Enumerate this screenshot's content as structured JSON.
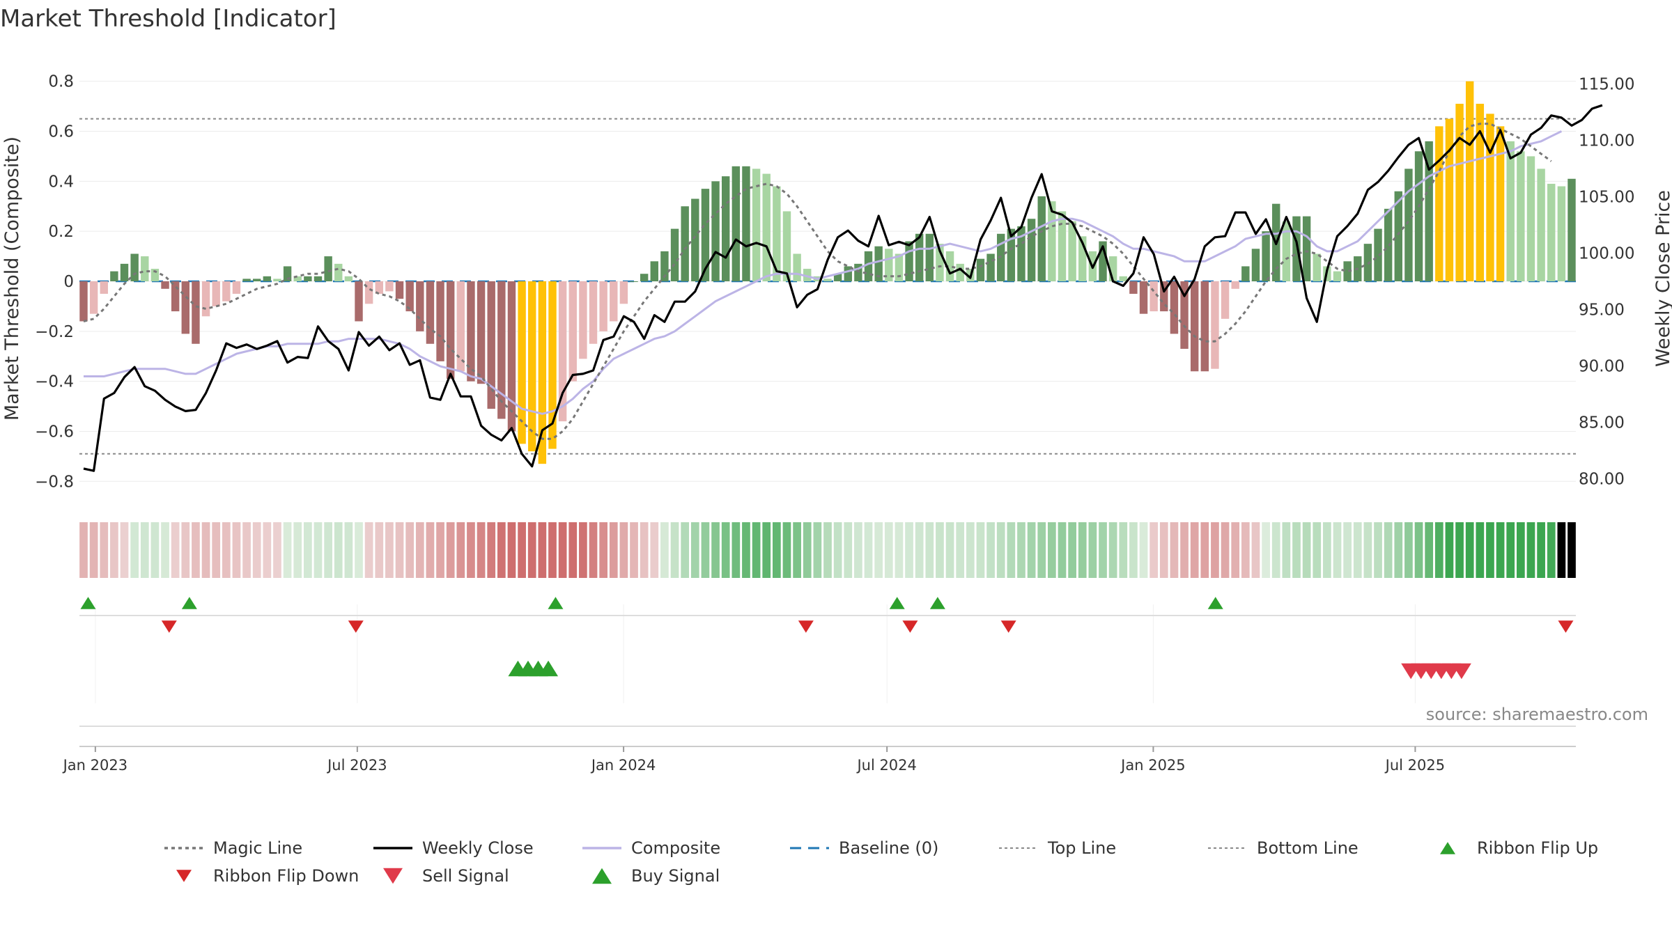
{
  "chart_data": {
    "type": "bar",
    "title": "Market Threshold [Indicator]",
    "ylabel": "Market Threshold (Composite)",
    "y2label": "Weekly Close Price",
    "source": "source: sharemaestro.com",
    "ylim": [
      -0.88,
      0.88
    ],
    "y2lim": [
      78.0,
      117.0
    ],
    "yticks": [
      {
        "v": 0.8,
        "label": "0.8"
      },
      {
        "v": 0.6,
        "label": "0.6"
      },
      {
        "v": 0.4,
        "label": "0.4"
      },
      {
        "v": 0.2,
        "label": "0.2"
      },
      {
        "v": 0,
        "label": "0"
      },
      {
        "v": -0.2,
        "label": "−0.2"
      },
      {
        "v": -0.4,
        "label": "−0.4"
      },
      {
        "v": -0.6,
        "label": "−0.6"
      },
      {
        "v": -0.8,
        "label": "−0.8"
      }
    ],
    "y2ticks": [
      {
        "v": 115,
        "label": "115.00"
      },
      {
        "v": 110,
        "label": "110.00"
      },
      {
        "v": 105,
        "label": "105.00"
      },
      {
        "v": 100,
        "label": "100.00"
      },
      {
        "v": 95,
        "label": "95.00"
      },
      {
        "v": 90,
        "label": "90.00"
      },
      {
        "v": 85,
        "label": "85.00"
      },
      {
        "v": 80,
        "label": "80.00"
      }
    ],
    "xticks": [
      {
        "label": "Jan 2023",
        "date": "2023-01-01"
      },
      {
        "label": "Jul 2023",
        "date": "2023-07-01"
      },
      {
        "label": "Jan 2024",
        "date": "2024-01-01"
      },
      {
        "label": "Jul 2024",
        "date": "2024-07-01"
      },
      {
        "label": "Jan 2025",
        "date": "2025-01-01"
      },
      {
        "label": "Jul 2025",
        "date": "2025-07-01"
      }
    ],
    "x_range": [
      "2022-12-21",
      "2025-10-20"
    ],
    "top_line": 0.65,
    "bottom_line": -0.69,
    "series": [
      {
        "name": "Composite (bars)",
        "values": [
          -0.16,
          -0.13,
          -0.05,
          0.04,
          0.07,
          0.11,
          0.1,
          0.05,
          -0.03,
          -0.12,
          -0.21,
          -0.25,
          -0.14,
          -0.1,
          -0.08,
          -0.05,
          0.01,
          0.01,
          0.02,
          0.01,
          0.06,
          0.02,
          0.02,
          0.02,
          0.1,
          0.07,
          0.02,
          -0.16,
          -0.09,
          -0.05,
          -0.04,
          -0.07,
          -0.12,
          -0.2,
          -0.25,
          -0.32,
          -0.39,
          -0.36,
          -0.4,
          -0.41,
          -0.51,
          -0.55,
          -0.6,
          -0.65,
          -0.68,
          -0.73,
          -0.67,
          -0.56,
          -0.4,
          -0.31,
          -0.25,
          -0.2,
          -0.16,
          -0.09,
          0,
          0.03,
          0.08,
          0.12,
          0.21,
          0.3,
          0.33,
          0.37,
          0.4,
          0.42,
          0.46,
          0.46,
          0.45,
          0.43,
          0.38,
          0.28,
          0.11,
          0.05,
          0.02,
          0.01,
          0.03,
          0.06,
          0.07,
          0.12,
          0.14,
          0.13,
          0.11,
          0.16,
          0.19,
          0.19,
          0.15,
          0.12,
          0.07,
          0.05,
          0.09,
          0.11,
          0.19,
          0.21,
          0.22,
          0.25,
          0.34,
          0.32,
          0.28,
          0.24,
          0.18,
          0.12,
          0.16,
          0.1,
          0.02,
          -0.05,
          -0.13,
          -0.12,
          -0.12,
          -0.21,
          -0.27,
          -0.36,
          -0.36,
          -0.35,
          -0.15,
          -0.03,
          0.06,
          0.13,
          0.2,
          0.31,
          0.24,
          0.26,
          0.26,
          0.11,
          0.06,
          0.04,
          0.08,
          0.1,
          0.15,
          0.21,
          0.29,
          0.36,
          0.45,
          0.52,
          0.56,
          0.62,
          0.65,
          0.71,
          0.8,
          0.71,
          0.67,
          0.62,
          0.56,
          0.52,
          0.5,
          0.45,
          0.39,
          0.38,
          0.41
        ]
      },
      {
        "name": "Weekly Close",
        "values": [
          80.9,
          80.7,
          87.1,
          87.6,
          89.0,
          89.9,
          88.2,
          87.8,
          87.0,
          86.4,
          86.0,
          86.1,
          87.6,
          89.6,
          92.0,
          91.6,
          91.9,
          91.5,
          91.8,
          92.2,
          90.3,
          90.8,
          90.7,
          93.5,
          92.2,
          91.5,
          89.6,
          93.0,
          91.8,
          92.6,
          91.4,
          92.0,
          90.1,
          90.5,
          87.2,
          87.0,
          89.3,
          87.3,
          87.3,
          84.7,
          83.9,
          83.4,
          84.5,
          82.2,
          81.1,
          84.3,
          84.9,
          87.6,
          89.2,
          89.3,
          89.6,
          92.3,
          92.6,
          94.4,
          93.9,
          92.4,
          94.5,
          93.9,
          95.7,
          95.7,
          96.6,
          98.6,
          100.1,
          99.6,
          101.2,
          100.6,
          100.9,
          100.6,
          98.4,
          98.2,
          95.2,
          96.3,
          96.8,
          99.4,
          101.4,
          102.0,
          101.1,
          100.6,
          103.3,
          100.7,
          101.0,
          100.7,
          101.4,
          103.2,
          100.2,
          98.2,
          98.6,
          97.8,
          101.2,
          102.9,
          104.9,
          101.5,
          102.3,
          104.9,
          107.0,
          103.7,
          103.4,
          102.7,
          100.9,
          98.7,
          100.6,
          97.5,
          97.1,
          98.2,
          101.4,
          99.9,
          96.6,
          97.9,
          96.2,
          97.7,
          100.6,
          101.4,
          101.5,
          103.6,
          103.6,
          101.7,
          103.0,
          100.8,
          103.2,
          101.0,
          96.0,
          93.9,
          98.5,
          101.5,
          102.4,
          103.5,
          105.6,
          106.3,
          107.3,
          108.5,
          109.6,
          110.2,
          107.4,
          108.2,
          109.1,
          110.2,
          109.6,
          110.8,
          108.9,
          110.9,
          108.4,
          108.9,
          110.5,
          111.1,
          112.2,
          112.0,
          111.3,
          111.8,
          112.8,
          113.1
        ]
      },
      {
        "name": "Composite",
        "values": [
          -0.38,
          -0.38,
          -0.38,
          -0.37,
          -0.36,
          -0.35,
          -0.35,
          -0.35,
          -0.35,
          -0.36,
          -0.37,
          -0.37,
          -0.35,
          -0.33,
          -0.31,
          -0.29,
          -0.28,
          -0.27,
          -0.26,
          -0.26,
          -0.25,
          -0.25,
          -0.25,
          -0.25,
          -0.24,
          -0.24,
          -0.23,
          -0.23,
          -0.23,
          -0.23,
          -0.24,
          -0.25,
          -0.27,
          -0.3,
          -0.32,
          -0.34,
          -0.35,
          -0.36,
          -0.38,
          -0.39,
          -0.42,
          -0.45,
          -0.48,
          -0.51,
          -0.52,
          -0.53,
          -0.52,
          -0.5,
          -0.47,
          -0.43,
          -0.4,
          -0.35,
          -0.31,
          -0.29,
          -0.27,
          -0.25,
          -0.23,
          -0.22,
          -0.2,
          -0.17,
          -0.14,
          -0.11,
          -0.08,
          -0.06,
          -0.04,
          -0.02,
          0,
          0.02,
          0.03,
          0.03,
          0.03,
          0.02,
          0.01,
          0.02,
          0.03,
          0.04,
          0.05,
          0.07,
          0.08,
          0.09,
          0.1,
          0.12,
          0.13,
          0.13,
          0.14,
          0.15,
          0.14,
          0.13,
          0.12,
          0.13,
          0.15,
          0.17,
          0.18,
          0.2,
          0.22,
          0.24,
          0.25,
          0.25,
          0.24,
          0.22,
          0.2,
          0.18,
          0.15,
          0.13,
          0.13,
          0.12,
          0.11,
          0.1,
          0.08,
          0.08,
          0.08,
          0.1,
          0.12,
          0.14,
          0.17,
          0.18,
          0.19,
          0.19,
          0.2,
          0.2,
          0.18,
          0.14,
          0.12,
          0.12,
          0.14,
          0.16,
          0.2,
          0.24,
          0.28,
          0.32,
          0.36,
          0.39,
          0.42,
          0.44,
          0.46,
          0.47,
          0.48,
          0.49,
          0.5,
          0.51,
          0.52,
          0.54,
          0.55,
          0.56,
          0.58,
          0.6
        ]
      },
      {
        "name": "Magic Line",
        "values": [
          -0.16,
          -0.15,
          -0.11,
          -0.06,
          -0.01,
          0.03,
          0.04,
          0.04,
          0.02,
          -0.02,
          -0.06,
          -0.1,
          -0.11,
          -0.1,
          -0.09,
          -0.07,
          -0.05,
          -0.03,
          -0.02,
          -0.01,
          0.01,
          0.02,
          0.03,
          0.03,
          0.04,
          0.05,
          0.04,
          0.01,
          -0.03,
          -0.05,
          -0.06,
          -0.08,
          -0.11,
          -0.15,
          -0.19,
          -0.22,
          -0.27,
          -0.31,
          -0.35,
          -0.38,
          -0.43,
          -0.48,
          -0.52,
          -0.56,
          -0.6,
          -0.63,
          -0.63,
          -0.6,
          -0.55,
          -0.48,
          -0.41,
          -0.34,
          -0.27,
          -0.2,
          -0.14,
          -0.08,
          -0.03,
          0.02,
          0.07,
          0.13,
          0.18,
          0.23,
          0.27,
          0.31,
          0.34,
          0.37,
          0.38,
          0.39,
          0.38,
          0.35,
          0.3,
          0.24,
          0.18,
          0.12,
          0.08,
          0.06,
          0.04,
          0.03,
          0.02,
          0.02,
          0.02,
          0.03,
          0.04,
          0.05,
          0.06,
          0.06,
          0.05,
          0.05,
          0.06,
          0.08,
          0.1,
          0.13,
          0.15,
          0.18,
          0.2,
          0.22,
          0.23,
          0.23,
          0.22,
          0.2,
          0.18,
          0.15,
          0.11,
          0.06,
          0.01,
          -0.04,
          -0.09,
          -0.13,
          -0.18,
          -0.22,
          -0.24,
          -0.24,
          -0.21,
          -0.17,
          -0.12,
          -0.06,
          0,
          0.05,
          0.09,
          0.11,
          0.12,
          0.11,
          0.08,
          0.05,
          0.04,
          0.05,
          0.07,
          0.1,
          0.14,
          0.19,
          0.24,
          0.3,
          0.37,
          0.44,
          0.52,
          0.58,
          0.62,
          0.63,
          0.63,
          0.61,
          0.59,
          0.57,
          0.54,
          0.51,
          0.48
        ]
      }
    ],
    "ribbon_flip_up_dates": [
      "2022-12-27",
      "2023-03-07",
      "2023-11-15",
      "2024-07-08",
      "2024-08-05",
      "2025-02-13"
    ],
    "ribbon_flip_down_dates": [
      "2023-02-21",
      "2023-06-30",
      "2024-05-06",
      "2024-07-17",
      "2024-09-23",
      "2025-10-13"
    ],
    "buy_signal_dates": [
      "2023-10-20",
      "2023-10-27",
      "2023-11-03",
      "2023-11-10"
    ],
    "sell_signal_dates": [
      "2025-06-28",
      "2025-07-05",
      "2025-07-12",
      "2025-07-19",
      "2025-07-26",
      "2025-08-02"
    ],
    "legend": [
      {
        "label": "Magic Line",
        "style": "dotted",
        "color": "#777777"
      },
      {
        "label": "Weekly Close",
        "style": "solid",
        "color": "#000000"
      },
      {
        "label": "Composite",
        "style": "solid",
        "color": "#bcb4e6"
      },
      {
        "label": "Baseline (0)",
        "style": "dashed",
        "color": "#1f77b4"
      },
      {
        "label": "Top Line",
        "style": "dotted-light",
        "color": "#888888"
      },
      {
        "label": "Bottom Line",
        "style": "dotted-light",
        "color": "#888888"
      },
      {
        "label": "Ribbon Flip Up",
        "style": "triangle-up",
        "color": "#2ca02c"
      },
      {
        "label": "Ribbon Flip Down",
        "style": "triangle-down",
        "color": "#d62728"
      },
      {
        "label": "Sell Signal",
        "style": "triangle-down-big",
        "color": "#e03a4a"
      },
      {
        "label": "Buy Signal",
        "style": "triangle-up-big",
        "color": "#2ca02c"
      }
    ],
    "colors": {
      "bar_strong_up": "#5b8f5b",
      "bar_weak_up": "#a8d5a2",
      "bar_strong_down": "#a96b6b",
      "bar_weak_down": "#e8b7b7",
      "bar_extreme": "#ffc107",
      "weekly_close": "#000000",
      "composite_line": "#bcb4e6",
      "magic_line": "#777777",
      "baseline": "#1f77b4"
    }
  }
}
